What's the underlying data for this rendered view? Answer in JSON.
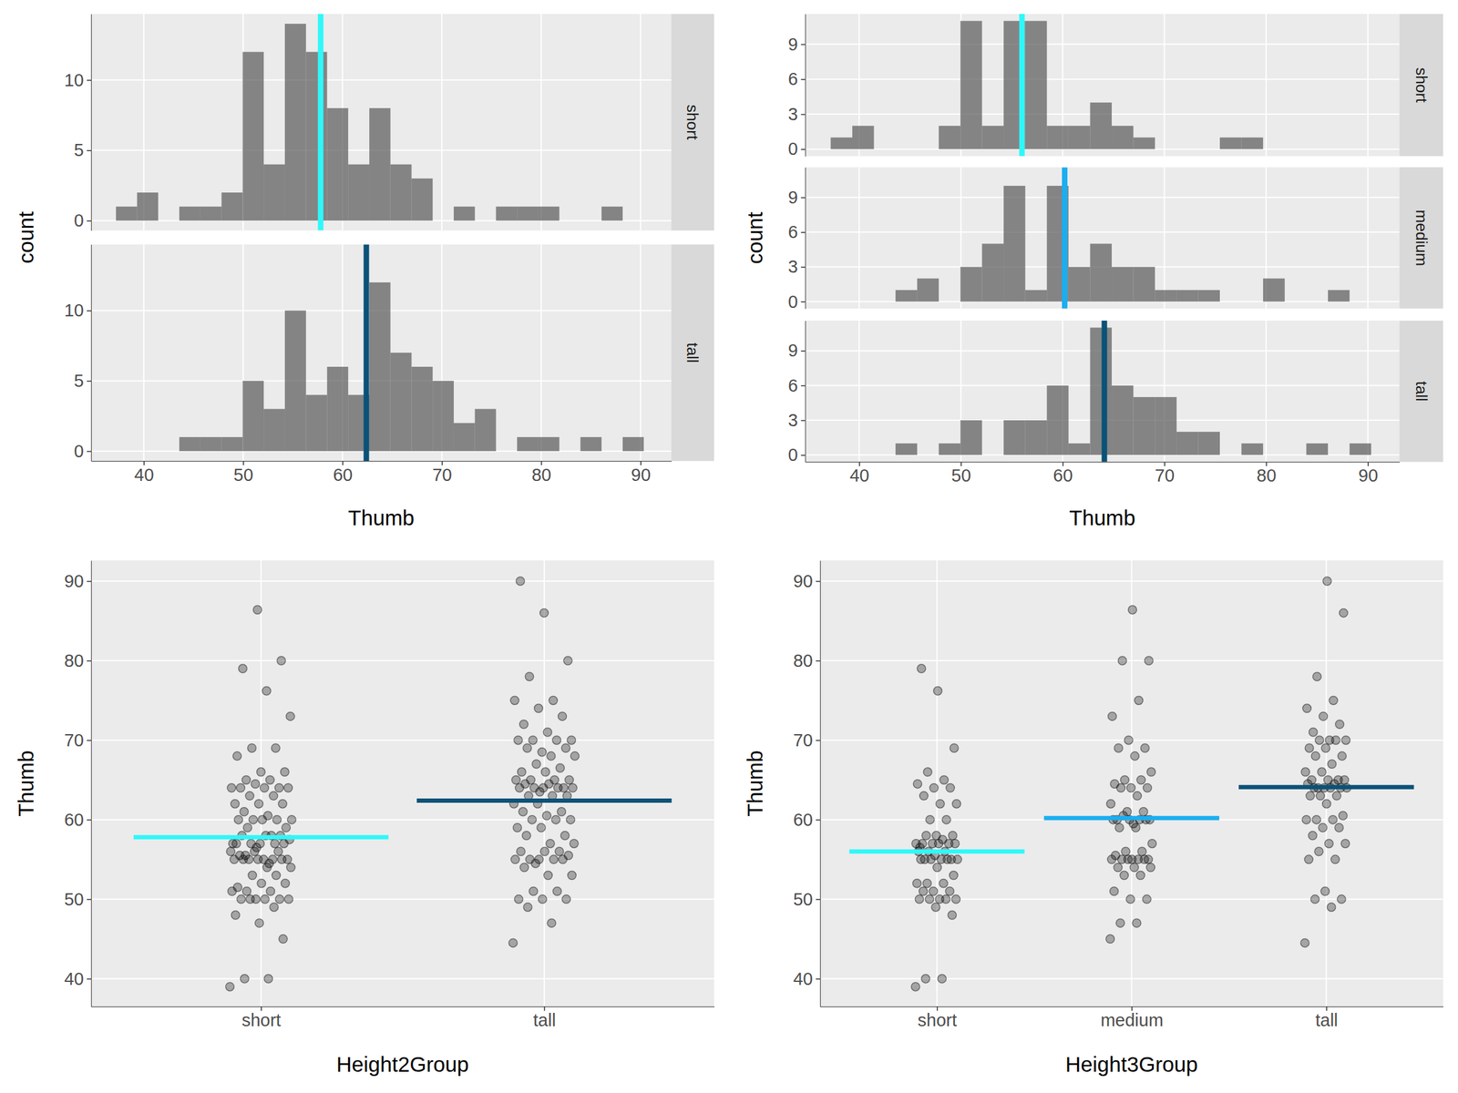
{
  "chart_data": [
    {
      "type": "histogram",
      "x_label": "Thumb",
      "y_label": "count",
      "grid": true,
      "bins": [
        37.2,
        39.325,
        41.45,
        43.575,
        45.7,
        47.825,
        49.95,
        52.075,
        54.2,
        56.325,
        58.45,
        60.575,
        62.7,
        64.825,
        66.95,
        69.075,
        71.2,
        73.325,
        75.45,
        77.575,
        79.7,
        81.825,
        83.95,
        86.075,
        88.2,
        90.325
      ],
      "xlim": [
        34.7,
        93.1
      ],
      "xticks": [
        40,
        50,
        60,
        70,
        80,
        90
      ],
      "ylim": [
        -0.7,
        14.7
      ],
      "yticks": [
        0,
        5,
        10
      ],
      "facets": [
        {
          "name": "short",
          "mean": 57.8,
          "color": "#2EF8FA",
          "counts": [
            1,
            2,
            0,
            1,
            1,
            2,
            12,
            4,
            14,
            12,
            8,
            4,
            8,
            4,
            3,
            0,
            1,
            0,
            1,
            1,
            1,
            0,
            0,
            1,
            0
          ]
        },
        {
          "name": "tall",
          "mean": 62.4,
          "color": "#0B5277",
          "counts": [
            0,
            0,
            0,
            1,
            1,
            1,
            5,
            3,
            10,
            4,
            6,
            4,
            12,
            7,
            6,
            5,
            2,
            3,
            0,
            1,
            1,
            0,
            1,
            0,
            1
          ]
        }
      ]
    },
    {
      "type": "histogram",
      "x_label": "Thumb",
      "y_label": "count",
      "grid": true,
      "bins": [
        37.2,
        39.325,
        41.45,
        43.575,
        45.7,
        47.825,
        49.95,
        52.075,
        54.2,
        56.325,
        58.45,
        60.575,
        62.7,
        64.825,
        66.95,
        69.075,
        71.2,
        73.325,
        75.45,
        77.575,
        79.7,
        81.825,
        83.95,
        86.075,
        88.2,
        90.325
      ],
      "xlim": [
        34.7,
        93.1
      ],
      "xticks": [
        40,
        50,
        60,
        70,
        80,
        90
      ],
      "ylim": [
        -0.6,
        11.6
      ],
      "yticks": [
        0,
        3,
        6,
        9
      ],
      "facets": [
        {
          "name": "short",
          "mean": 56.0,
          "color": "#2EF8FA",
          "counts": [
            1,
            2,
            0,
            0,
            0,
            2,
            11,
            2,
            11,
            11,
            2,
            2,
            4,
            2,
            1,
            0,
            0,
            0,
            1,
            1,
            0,
            0,
            0,
            0,
            0
          ]
        },
        {
          "name": "medium",
          "mean": 60.2,
          "color": "#1AAEF0",
          "counts": [
            0,
            0,
            0,
            1,
            2,
            0,
            3,
            5,
            10,
            1,
            10,
            3,
            5,
            3,
            3,
            1,
            1,
            1,
            0,
            0,
            2,
            0,
            0,
            1,
            0
          ]
        },
        {
          "name": "tall",
          "mean": 64.1,
          "color": "#0B5277",
          "counts": [
            0,
            0,
            0,
            1,
            0,
            1,
            3,
            0,
            3,
            3,
            6,
            1,
            11,
            6,
            5,
            5,
            2,
            2,
            0,
            1,
            0,
            0,
            1,
            0,
            1
          ]
        }
      ]
    },
    {
      "type": "scatter",
      "x_label": "Height2Group",
      "y_label": "Thumb",
      "grid": true,
      "ylim": [
        36.5,
        92.6
      ],
      "yticks": [
        40,
        50,
        60,
        70,
        80,
        90
      ],
      "groups": [
        {
          "name": "short",
          "mean": 57.8,
          "color": "#2EF8FA",
          "values": [
            39,
            40,
            40,
            45,
            47,
            48,
            49,
            50,
            50,
            50,
            50,
            50,
            50,
            51,
            51,
            51,
            52,
            52,
            51.5,
            53,
            53,
            54,
            54,
            55,
            55,
            55,
            55,
            55,
            55,
            55,
            55,
            55.5,
            56,
            56,
            56,
            54.5,
            55.5,
            57,
            57,
            57,
            57,
            57,
            57.5,
            58,
            58,
            58,
            56.5,
            57,
            58,
            59,
            59,
            60,
            60,
            60,
            60,
            60,
            60.5,
            61,
            62,
            62,
            62,
            63,
            63,
            64,
            64,
            64,
            64,
            64.5,
            64,
            65,
            65,
            66,
            66,
            68,
            69,
            69,
            73,
            76.2,
            79,
            80,
            86.4
          ]
        },
        {
          "name": "tall",
          "mean": 62.4,
          "color": "#0B5277",
          "values": [
            44.5,
            47,
            49,
            50,
            50,
            50,
            51,
            51,
            53,
            53,
            54,
            55,
            55,
            55,
            55,
            55,
            55.5,
            56,
            56,
            56,
            54.5,
            57,
            57,
            58,
            58,
            59,
            59,
            60,
            60,
            60,
            60.5,
            61,
            61,
            62,
            62,
            63,
            63,
            63,
            64,
            64,
            64,
            64,
            64,
            64.5,
            64.5,
            64,
            63.5,
            65,
            65,
            65,
            65,
            66,
            66,
            66.5,
            67,
            68,
            68,
            69,
            69,
            68.5,
            70,
            70,
            70,
            70,
            71,
            72,
            73,
            74,
            75,
            75,
            78,
            80,
            86,
            90
          ]
        }
      ]
    },
    {
      "type": "scatter",
      "x_label": "Height3Group",
      "y_label": "Thumb",
      "grid": true,
      "ylim": [
        36.5,
        92.6
      ],
      "yticks": [
        40,
        50,
        60,
        70,
        80,
        90
      ],
      "groups": [
        {
          "name": "short",
          "mean": 56.0,
          "color": "#2EF8FA",
          "values": [
            39,
            40,
            40,
            48,
            49,
            50,
            50,
            50,
            50,
            50,
            51,
            51,
            51,
            52,
            52,
            52,
            53,
            54,
            55,
            55,
            55,
            55,
            55,
            55,
            55,
            55.5,
            56,
            56,
            56,
            57,
            57,
            57,
            57,
            57,
            57,
            57.5,
            58,
            58,
            58,
            56.5,
            60,
            60,
            62,
            62,
            63,
            64,
            64,
            64.5,
            65,
            66,
            69,
            76.2,
            79
          ]
        },
        {
          "name": "medium",
          "mean": 60.2,
          "color": "#1AAEF0",
          "values": [
            45,
            47,
            47,
            50,
            50,
            51,
            53,
            53,
            54,
            54,
            54,
            55,
            55,
            55,
            55,
            55,
            55,
            55,
            55.5,
            56,
            56,
            57,
            59,
            59,
            60,
            60,
            60,
            60,
            60.5,
            60,
            59.5,
            60,
            61,
            61,
            62,
            63,
            64,
            64,
            64,
            64.5,
            65,
            65,
            66,
            68,
            69,
            69,
            70,
            73,
            75,
            80,
            80,
            86.4
          ]
        },
        {
          "name": "tall",
          "mean": 64.1,
          "color": "#0B5277",
          "values": [
            44.5,
            49,
            50,
            50,
            51,
            55,
            55,
            56,
            57,
            57,
            58,
            59,
            59,
            60,
            60,
            60,
            60.5,
            62,
            63,
            63,
            63,
            64,
            64,
            64,
            64,
            64,
            64.5,
            64.5,
            64,
            65,
            65,
            65,
            65,
            66,
            66,
            67,
            68,
            68,
            69,
            69,
            70,
            70,
            70,
            70,
            71,
            72,
            73,
            74,
            75,
            78,
            86,
            90
          ]
        }
      ]
    }
  ]
}
